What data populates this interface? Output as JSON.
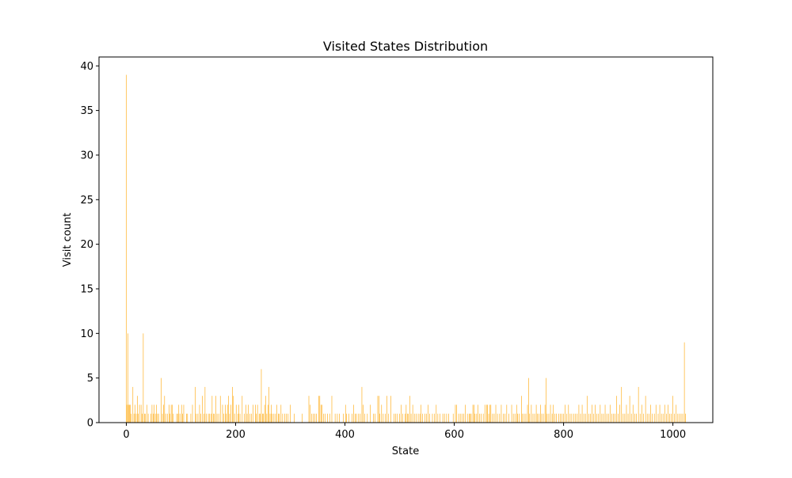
{
  "chart_data": {
    "type": "bar",
    "title": "Visited States Distribution",
    "xlabel": "State",
    "ylabel": "Visit count",
    "xlim": [
      -50,
      1073
    ],
    "ylim": [
      0,
      41
    ],
    "xticks": [
      0,
      200,
      400,
      600,
      800,
      1000
    ],
    "yticks": [
      0,
      5,
      10,
      15,
      20,
      25,
      30,
      35,
      40
    ],
    "grid": false,
    "legend": "none",
    "bar_color": "#FFA500",
    "bars": [
      [
        0,
        39
      ],
      [
        1,
        2
      ],
      [
        3,
        10
      ],
      [
        4,
        2
      ],
      [
        6,
        2
      ],
      [
        7,
        2
      ],
      [
        9,
        1
      ],
      [
        12,
        4
      ],
      [
        14,
        1
      ],
      [
        16,
        2
      ],
      [
        18,
        1
      ],
      [
        20,
        3
      ],
      [
        22,
        1
      ],
      [
        24,
        2
      ],
      [
        27,
        2
      ],
      [
        29,
        1
      ],
      [
        31,
        10
      ],
      [
        33,
        1
      ],
      [
        35,
        1
      ],
      [
        38,
        2
      ],
      [
        40,
        1
      ],
      [
        45,
        1
      ],
      [
        47,
        2
      ],
      [
        49,
        1
      ],
      [
        51,
        2
      ],
      [
        53,
        1
      ],
      [
        55,
        2
      ],
      [
        57,
        1
      ],
      [
        59,
        1
      ],
      [
        64,
        5
      ],
      [
        66,
        1
      ],
      [
        68,
        2
      ],
      [
        70,
        3
      ],
      [
        72,
        1
      ],
      [
        75,
        1
      ],
      [
        78,
        2
      ],
      [
        80,
        1
      ],
      [
        82,
        2
      ],
      [
        84,
        2
      ],
      [
        86,
        1
      ],
      [
        92,
        1
      ],
      [
        94,
        1
      ],
      [
        96,
        2
      ],
      [
        98,
        1
      ],
      [
        101,
        2
      ],
      [
        103,
        1
      ],
      [
        105,
        2
      ],
      [
        110,
        1
      ],
      [
        112,
        1
      ],
      [
        118,
        1
      ],
      [
        121,
        2
      ],
      [
        126,
        4
      ],
      [
        128,
        1
      ],
      [
        131,
        1
      ],
      [
        134,
        2
      ],
      [
        136,
        1
      ],
      [
        139,
        3
      ],
      [
        142,
        1
      ],
      [
        144,
        4
      ],
      [
        146,
        1
      ],
      [
        150,
        1
      ],
      [
        152,
        1
      ],
      [
        155,
        1
      ],
      [
        157,
        3
      ],
      [
        159,
        1
      ],
      [
        161,
        1
      ],
      [
        164,
        3
      ],
      [
        166,
        1
      ],
      [
        169,
        1
      ],
      [
        172,
        3
      ],
      [
        176,
        2
      ],
      [
        178,
        1
      ],
      [
        181,
        2
      ],
      [
        183,
        1
      ],
      [
        185,
        2
      ],
      [
        187,
        3
      ],
      [
        189,
        1
      ],
      [
        191,
        2
      ],
      [
        194,
        4
      ],
      [
        196,
        3
      ],
      [
        198,
        1
      ],
      [
        201,
        2
      ],
      [
        204,
        1
      ],
      [
        206,
        2
      ],
      [
        208,
        1
      ],
      [
        212,
        3
      ],
      [
        216,
        1
      ],
      [
        219,
        2
      ],
      [
        221,
        1
      ],
      [
        223,
        2
      ],
      [
        226,
        1
      ],
      [
        229,
        1
      ],
      [
        232,
        2
      ],
      [
        236,
        2
      ],
      [
        238,
        1
      ],
      [
        240,
        2
      ],
      [
        243,
        1
      ],
      [
        245,
        1
      ],
      [
        247,
        6
      ],
      [
        249,
        1
      ],
      [
        251,
        1
      ],
      [
        253,
        2
      ],
      [
        255,
        3
      ],
      [
        257,
        1
      ],
      [
        259,
        2
      ],
      [
        261,
        4
      ],
      [
        263,
        1
      ],
      [
        265,
        2
      ],
      [
        267,
        1
      ],
      [
        270,
        1
      ],
      [
        273,
        1
      ],
      [
        275,
        2
      ],
      [
        278,
        1
      ],
      [
        280,
        1
      ],
      [
        283,
        2
      ],
      [
        286,
        1
      ],
      [
        290,
        1
      ],
      [
        293,
        1
      ],
      [
        296,
        1
      ],
      [
        300,
        2
      ],
      [
        307,
        1
      ],
      [
        322,
        1
      ],
      [
        334,
        3
      ],
      [
        336,
        2
      ],
      [
        339,
        1
      ],
      [
        342,
        1
      ],
      [
        345,
        1
      ],
      [
        348,
        1
      ],
      [
        352,
        3
      ],
      [
        354,
        3
      ],
      [
        356,
        2
      ],
      [
        358,
        2
      ],
      [
        361,
        1
      ],
      [
        364,
        1
      ],
      [
        368,
        1
      ],
      [
        372,
        1
      ],
      [
        376,
        3
      ],
      [
        382,
        1
      ],
      [
        386,
        1
      ],
      [
        390,
        1
      ],
      [
        397,
        1
      ],
      [
        401,
        2
      ],
      [
        403,
        1
      ],
      [
        407,
        1
      ],
      [
        413,
        1
      ],
      [
        416,
        2
      ],
      [
        419,
        1
      ],
      [
        421,
        1
      ],
      [
        425,
        1
      ],
      [
        428,
        1
      ],
      [
        431,
        4
      ],
      [
        433,
        2
      ],
      [
        436,
        1
      ],
      [
        441,
        1
      ],
      [
        446,
        2
      ],
      [
        452,
        1
      ],
      [
        455,
        1
      ],
      [
        460,
        3
      ],
      [
        462,
        3
      ],
      [
        464,
        1
      ],
      [
        467,
        2
      ],
      [
        470,
        1
      ],
      [
        474,
        1
      ],
      [
        477,
        3
      ],
      [
        480,
        1
      ],
      [
        484,
        3
      ],
      [
        490,
        1
      ],
      [
        493,
        1
      ],
      [
        496,
        1
      ],
      [
        500,
        1
      ],
      [
        503,
        2
      ],
      [
        506,
        1
      ],
      [
        510,
        1
      ],
      [
        512,
        2
      ],
      [
        514,
        1
      ],
      [
        516,
        1
      ],
      [
        519,
        3
      ],
      [
        521,
        1
      ],
      [
        524,
        2
      ],
      [
        527,
        1
      ],
      [
        530,
        1
      ],
      [
        534,
        1
      ],
      [
        537,
        1
      ],
      [
        539,
        2
      ],
      [
        542,
        1
      ],
      [
        546,
        1
      ],
      [
        549,
        1
      ],
      [
        552,
        2
      ],
      [
        555,
        1
      ],
      [
        560,
        1
      ],
      [
        564,
        1
      ],
      [
        567,
        2
      ],
      [
        570,
        1
      ],
      [
        574,
        1
      ],
      [
        579,
        1
      ],
      [
        582,
        1
      ],
      [
        586,
        1
      ],
      [
        590,
        1
      ],
      [
        598,
        1
      ],
      [
        602,
        2
      ],
      [
        604,
        2
      ],
      [
        608,
        1
      ],
      [
        611,
        1
      ],
      [
        614,
        1
      ],
      [
        617,
        1
      ],
      [
        620,
        2
      ],
      [
        624,
        1
      ],
      [
        627,
        1
      ],
      [
        629,
        1
      ],
      [
        631,
        1
      ],
      [
        634,
        2
      ],
      [
        636,
        2
      ],
      [
        638,
        1
      ],
      [
        641,
        1
      ],
      [
        643,
        2
      ],
      [
        646,
        1
      ],
      [
        649,
        1
      ],
      [
        653,
        1
      ],
      [
        656,
        2
      ],
      [
        659,
        2
      ],
      [
        661,
        2
      ],
      [
        663,
        1
      ],
      [
        665,
        2
      ],
      [
        667,
        2
      ],
      [
        670,
        1
      ],
      [
        673,
        1
      ],
      [
        676,
        2
      ],
      [
        679,
        1
      ],
      [
        683,
        1
      ],
      [
        686,
        2
      ],
      [
        690,
        1
      ],
      [
        693,
        1
      ],
      [
        696,
        2
      ],
      [
        700,
        1
      ],
      [
        705,
        2
      ],
      [
        708,
        1
      ],
      [
        711,
        1
      ],
      [
        714,
        2
      ],
      [
        716,
        1
      ],
      [
        719,
        1
      ],
      [
        723,
        3
      ],
      [
        725,
        1
      ],
      [
        728,
        1
      ],
      [
        731,
        1
      ],
      [
        734,
        2
      ],
      [
        736,
        5
      ],
      [
        738,
        1
      ],
      [
        741,
        2
      ],
      [
        744,
        1
      ],
      [
        747,
        1
      ],
      [
        750,
        2
      ],
      [
        752,
        1
      ],
      [
        755,
        1
      ],
      [
        758,
        2
      ],
      [
        760,
        1
      ],
      [
        763,
        1
      ],
      [
        766,
        2
      ],
      [
        768,
        5
      ],
      [
        770,
        1
      ],
      [
        773,
        1
      ],
      [
        776,
        2
      ],
      [
        779,
        1
      ],
      [
        781,
        2
      ],
      [
        784,
        1
      ],
      [
        787,
        1
      ],
      [
        791,
        1
      ],
      [
        794,
        1
      ],
      [
        797,
        1
      ],
      [
        800,
        1
      ],
      [
        803,
        2
      ],
      [
        806,
        1
      ],
      [
        809,
        2
      ],
      [
        812,
        1
      ],
      [
        815,
        1
      ],
      [
        819,
        1
      ],
      [
        822,
        1
      ],
      [
        825,
        1
      ],
      [
        828,
        2
      ],
      [
        831,
        1
      ],
      [
        834,
        2
      ],
      [
        837,
        1
      ],
      [
        840,
        1
      ],
      [
        843,
        3
      ],
      [
        846,
        1
      ],
      [
        849,
        1
      ],
      [
        852,
        2
      ],
      [
        855,
        1
      ],
      [
        858,
        2
      ],
      [
        861,
        1
      ],
      [
        864,
        1
      ],
      [
        867,
        2
      ],
      [
        870,
        1
      ],
      [
        873,
        1
      ],
      [
        876,
        2
      ],
      [
        879,
        1
      ],
      [
        882,
        1
      ],
      [
        885,
        2
      ],
      [
        888,
        1
      ],
      [
        891,
        1
      ],
      [
        894,
        1
      ],
      [
        897,
        3
      ],
      [
        900,
        1
      ],
      [
        903,
        2
      ],
      [
        906,
        4
      ],
      [
        909,
        1
      ],
      [
        912,
        1
      ],
      [
        915,
        2
      ],
      [
        918,
        1
      ],
      [
        921,
        3
      ],
      [
        924,
        1
      ],
      [
        927,
        2
      ],
      [
        930,
        1
      ],
      [
        933,
        1
      ],
      [
        937,
        4
      ],
      [
        940,
        1
      ],
      [
        943,
        2
      ],
      [
        946,
        1
      ],
      [
        950,
        3
      ],
      [
        953,
        1
      ],
      [
        956,
        1
      ],
      [
        959,
        2
      ],
      [
        962,
        1
      ],
      [
        966,
        1
      ],
      [
        969,
        2
      ],
      [
        973,
        1
      ],
      [
        976,
        2
      ],
      [
        979,
        1
      ],
      [
        982,
        1
      ],
      [
        985,
        2
      ],
      [
        988,
        1
      ],
      [
        991,
        2
      ],
      [
        994,
        1
      ],
      [
        997,
        1
      ],
      [
        1000,
        3
      ],
      [
        1003,
        1
      ],
      [
        1006,
        2
      ],
      [
        1009,
        1
      ],
      [
        1012,
        1
      ],
      [
        1015,
        1
      ],
      [
        1018,
        1
      ],
      [
        1021,
        9
      ],
      [
        1023,
        1
      ]
    ]
  }
}
